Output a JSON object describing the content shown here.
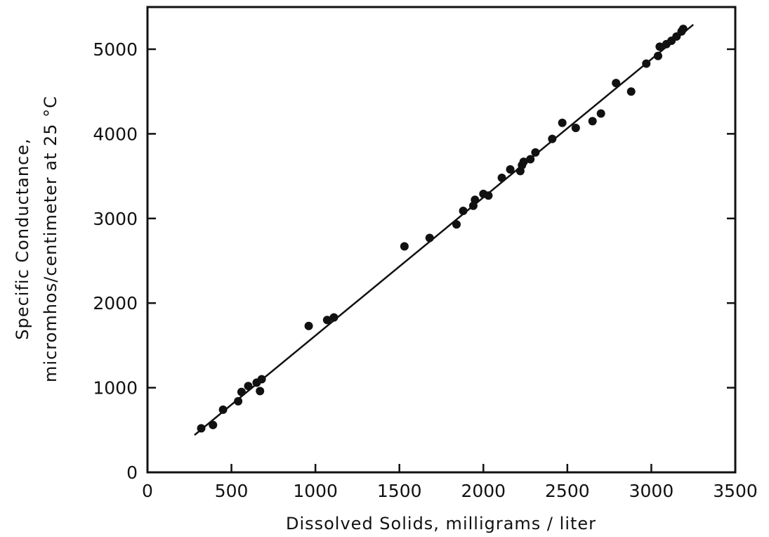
{
  "chart_data": {
    "type": "scatter",
    "title": "",
    "xlabel": "Dissolved Solids, milligrams / liter",
    "ylabel_line1": "Specific Conductance,",
    "ylabel_line2": "micromhos/centimeter at 25 °C",
    "xlim": [
      0,
      3500
    ],
    "ylim": [
      0,
      5000
    ],
    "x_ticks": [
      0,
      500,
      1000,
      1500,
      2000,
      2500,
      3000,
      3500
    ],
    "y_ticks": [
      0,
      1000,
      2000,
      3000,
      4000,
      5000
    ],
    "x_tick_labels": [
      "0",
      "500",
      "1000",
      "1500",
      "2000",
      "2500",
      "3000",
      "3500"
    ],
    "y_tick_labels": [
      "0",
      "1000",
      "2000",
      "3000",
      "4000",
      "5000"
    ],
    "grid": false,
    "legend": "none",
    "colors": {
      "ink": "#111111",
      "background": "#ffffff"
    },
    "series": [
      {
        "points": [
          [
            320,
            520
          ],
          [
            390,
            560
          ],
          [
            450,
            740
          ],
          [
            540,
            840
          ],
          [
            560,
            950
          ],
          [
            600,
            1020
          ],
          [
            650,
            1060
          ],
          [
            670,
            960
          ],
          [
            680,
            1100
          ],
          [
            960,
            1730
          ],
          [
            1070,
            1800
          ],
          [
            1110,
            1830
          ],
          [
            1530,
            2670
          ],
          [
            1680,
            2770
          ],
          [
            1840,
            2930
          ],
          [
            1880,
            3090
          ],
          [
            1940,
            3150
          ],
          [
            1950,
            3220
          ],
          [
            2000,
            3290
          ],
          [
            2030,
            3270
          ],
          [
            2110,
            3480
          ],
          [
            2160,
            3580
          ],
          [
            2220,
            3560
          ],
          [
            2230,
            3630
          ],
          [
            2240,
            3670
          ],
          [
            2280,
            3700
          ],
          [
            2310,
            3780
          ],
          [
            2410,
            3940
          ],
          [
            2470,
            4130
          ],
          [
            2550,
            4070
          ],
          [
            2650,
            4150
          ],
          [
            2700,
            4240
          ],
          [
            2790,
            4600
          ],
          [
            2880,
            4500
          ],
          [
            2970,
            4830
          ],
          [
            3040,
            4920
          ],
          [
            3050,
            5030
          ],
          [
            3090,
            5060
          ],
          [
            3120,
            5100
          ],
          [
            3150,
            5150
          ],
          [
            3180,
            5210
          ],
          [
            3190,
            5240
          ]
        ]
      }
    ],
    "fit_line": {
      "x": [
        280,
        3250
      ],
      "y": [
        440,
        5290
      ]
    }
  }
}
